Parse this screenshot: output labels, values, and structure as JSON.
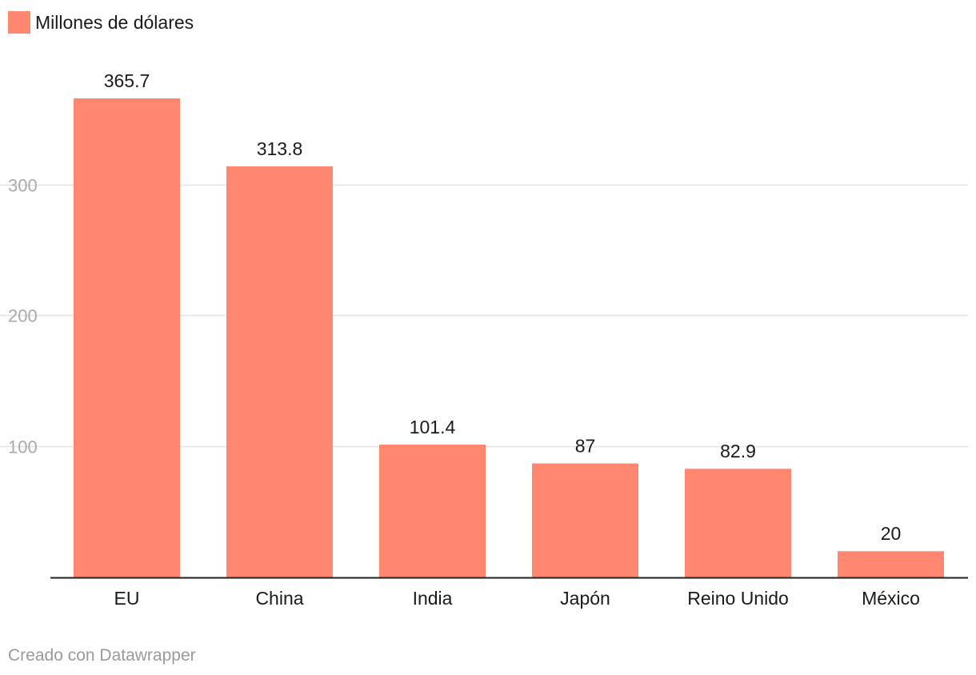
{
  "legend": {
    "label": "Millones de dólares",
    "color": "#ff8770"
  },
  "chart_data": {
    "type": "bar",
    "categories": [
      "EU",
      "China",
      "India",
      "Japón",
      "Reino Unido",
      "México"
    ],
    "series": [
      {
        "name": "Millones de dólares",
        "values": [
          365.7,
          313.8,
          101.4,
          87,
          82.9,
          20
        ],
        "color": "#ff8770"
      }
    ],
    "value_labels": [
      "365.7",
      "313.8",
      "101.4",
      "87",
      "82.9",
      "20"
    ],
    "y_ticks": [
      100,
      200,
      300
    ],
    "ylim": [
      0,
      365.7
    ],
    "grid": true,
    "legend_position": "top-left"
  },
  "footer": {
    "credit": "Creado con Datawrapper"
  }
}
